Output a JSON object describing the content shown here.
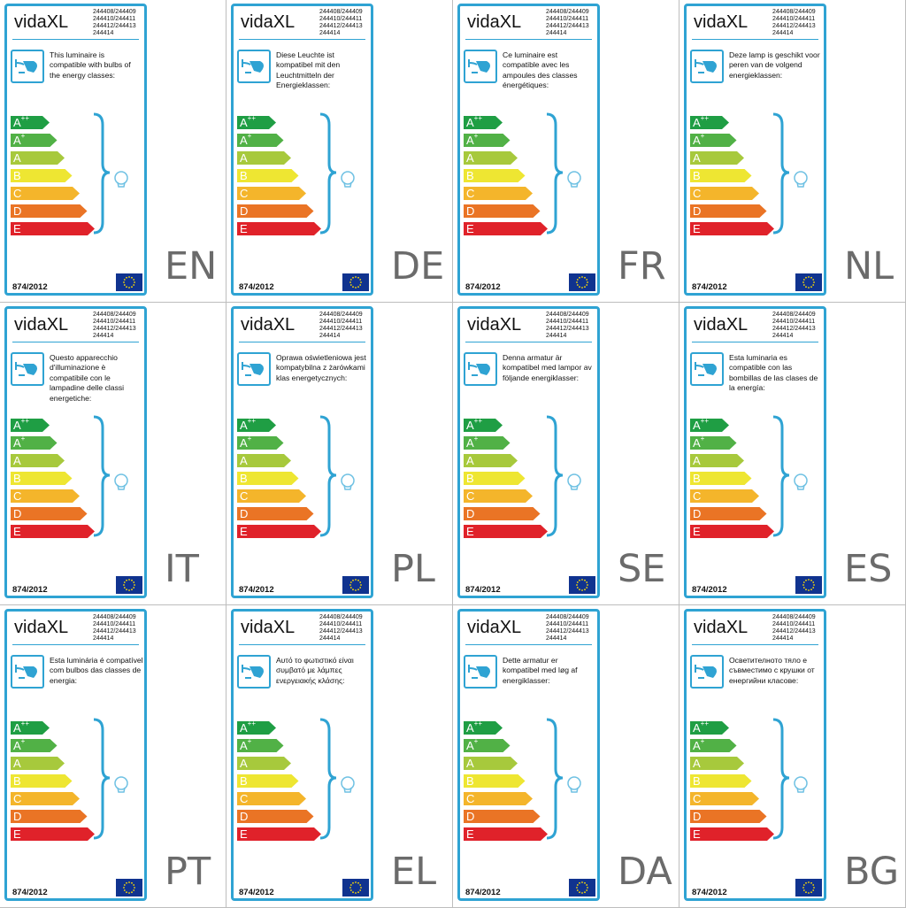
{
  "brand": "vidaXL",
  "model_codes": "244408/244409\n244410/244411\n244412/244413\n244414",
  "regulation": "874/2012",
  "icons": {
    "lamp": "lamp-icon",
    "bulb": "bulb-icon",
    "flag": "eu-flag-icon"
  },
  "colors": {
    "frame": "#2fa3d3",
    "language_code": "#6b6b6b",
    "eu_blue": "#10338f",
    "eu_star": "#ffdd00"
  },
  "energy_classes": [
    {
      "letter": "A",
      "sup": "++",
      "color": "#1f9e44"
    },
    {
      "letter": "A",
      "sup": "+",
      "color": "#51b146"
    },
    {
      "letter": "A",
      "sup": "",
      "color": "#a7c93c"
    },
    {
      "letter": "B",
      "sup": "",
      "color": "#eee632"
    },
    {
      "letter": "C",
      "sup": "",
      "color": "#f4b52b"
    },
    {
      "letter": "D",
      "sup": "",
      "color": "#ea7425"
    },
    {
      "letter": "E",
      "sup": "",
      "color": "#e0222a"
    }
  ],
  "labels": [
    {
      "lang": "EN",
      "text": "This luminaire is compatible with bulbs of the energy classes:"
    },
    {
      "lang": "DE",
      "text": "Diese Leuchte ist kompatibel mit den Leuchtmitteln der Energieklassen:"
    },
    {
      "lang": "FR",
      "text": "Ce luminaire est compatible avec les ampoules des classes énergétiques:"
    },
    {
      "lang": "NL",
      "text": "Deze lamp is geschikt voor peren van de volgend energieklassen:"
    },
    {
      "lang": "IT",
      "text": "Questo apparecchio d'illuminazione è compatibile con le lampadine delle classi energetiche:"
    },
    {
      "lang": "PL",
      "text": "Oprawa oświetleniowa jest kompatybilna z żarówkami klas energetycznych:"
    },
    {
      "lang": "SE",
      "text": "Denna armatur är kompatibel med lampor av följande energiklasser:"
    },
    {
      "lang": "ES",
      "text": "Esta luminaria es compatible con las bombillas de las clases de la energía:"
    },
    {
      "lang": "PT",
      "text": "Esta luminária é compatível com bulbos das classes de energia:"
    },
    {
      "lang": "EL",
      "text": "Αυτό το φωτιστικό είναι συμβατό με λάμπες ενεργειακής κλάσης:"
    },
    {
      "lang": "DA",
      "text": "Dette armatur er kompatibel med løg af energiklasser:"
    },
    {
      "lang": "BG",
      "text": "Осветителното тяло е съвместимо с крушки от енергийни класове:"
    }
  ]
}
